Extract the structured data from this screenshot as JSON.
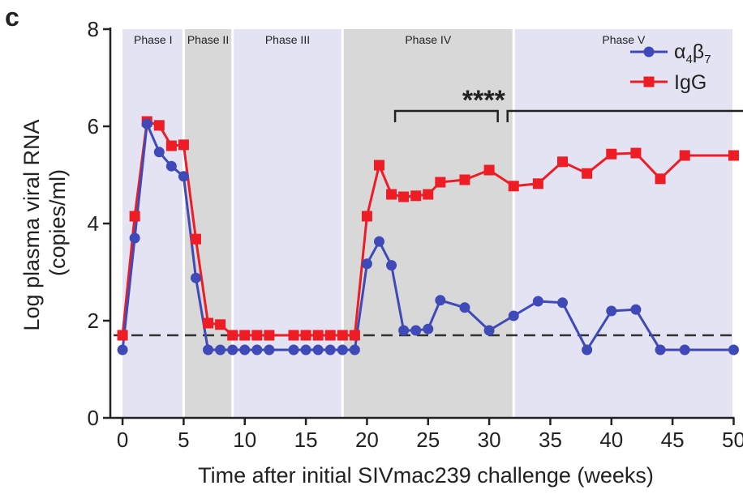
{
  "panel_label": "c",
  "colors": {
    "alpha4beta7": "#3f49b8",
    "igg": "#ee1c24",
    "band_light": "#e3e3f4",
    "band_gray": "#d8d8d8",
    "dashed_line": "#333333"
  },
  "chart_data": {
    "type": "line",
    "xlabel": "Time after initial SIVmac239 challenge (weeks)",
    "ylabel": [
      "Log plasma viral RNA",
      "(copies/ml)"
    ],
    "xlim": [
      -1,
      50.5
    ],
    "ylim": [
      0,
      8
    ],
    "xticks": [
      0,
      5,
      10,
      15,
      20,
      25,
      30,
      35,
      40,
      45,
      50
    ],
    "yticks": [
      0,
      2,
      4,
      6,
      8
    ],
    "grid": false,
    "legend_position": "top-right",
    "threshold": 1.7,
    "phases": [
      {
        "label": "Phase I",
        "start": 0,
        "end": 5,
        "shade": "light"
      },
      {
        "label": "Phase II",
        "start": 5,
        "end": 9,
        "shade": "gray"
      },
      {
        "label": "Phase III",
        "start": 9,
        "end": 18,
        "shade": "light"
      },
      {
        "label": "Phase IV",
        "start": 18,
        "end": 32,
        "shade": "gray"
      },
      {
        "label": "Phase V",
        "start": 32,
        "end": 50,
        "shade": "light"
      }
    ],
    "series": [
      {
        "name": "α4β7",
        "name_base": "α",
        "name_sub1": "4",
        "name_mid": "β",
        "name_sub2": "7",
        "marker": "circle",
        "color": "#3f49b8",
        "x": [
          0,
          1,
          2,
          3,
          4,
          5,
          6,
          7,
          8,
          9,
          10,
          11,
          12,
          14,
          15,
          16,
          17,
          18,
          19,
          20,
          21,
          22,
          23,
          24,
          25,
          26,
          28,
          30,
          32,
          34,
          36,
          38,
          40,
          42,
          44,
          46,
          50
        ],
        "y": [
          1.4,
          3.7,
          6.05,
          5.47,
          5.18,
          4.97,
          2.88,
          1.4,
          1.4,
          1.4,
          1.4,
          1.4,
          1.4,
          1.4,
          1.4,
          1.4,
          1.4,
          1.4,
          1.4,
          3.17,
          3.63,
          3.14,
          1.8,
          1.8,
          1.83,
          2.42,
          2.27,
          1.8,
          2.1,
          2.4,
          2.37,
          1.4,
          2.2,
          2.23,
          1.4,
          1.4,
          1.4
        ]
      },
      {
        "name": "IgG",
        "marker": "square",
        "color": "#ee1c24",
        "x": [
          0,
          1,
          2,
          3,
          4,
          5,
          6,
          7,
          8,
          9,
          10,
          11,
          12,
          14,
          15,
          16,
          17,
          18,
          19,
          20,
          21,
          22,
          23,
          24,
          25,
          26,
          28,
          30,
          32,
          34,
          36,
          38,
          40,
          42,
          44,
          46,
          50
        ],
        "y": [
          1.7,
          4.15,
          6.1,
          6.02,
          5.6,
          5.62,
          3.68,
          1.95,
          1.92,
          1.7,
          1.7,
          1.7,
          1.7,
          1.7,
          1.7,
          1.7,
          1.7,
          1.7,
          1.7,
          4.15,
          5.2,
          4.6,
          4.55,
          4.57,
          4.6,
          4.85,
          4.9,
          5.1,
          4.77,
          4.82,
          5.27,
          5.03,
          5.43,
          5.45,
          4.92,
          5.4,
          5.4
        ]
      }
    ],
    "significance": {
      "label": "****",
      "bracket_left": {
        "from": 22.3,
        "to": 30.7
      },
      "bracket_right": {
        "from": 31.5,
        "to": 51.2
      }
    }
  }
}
